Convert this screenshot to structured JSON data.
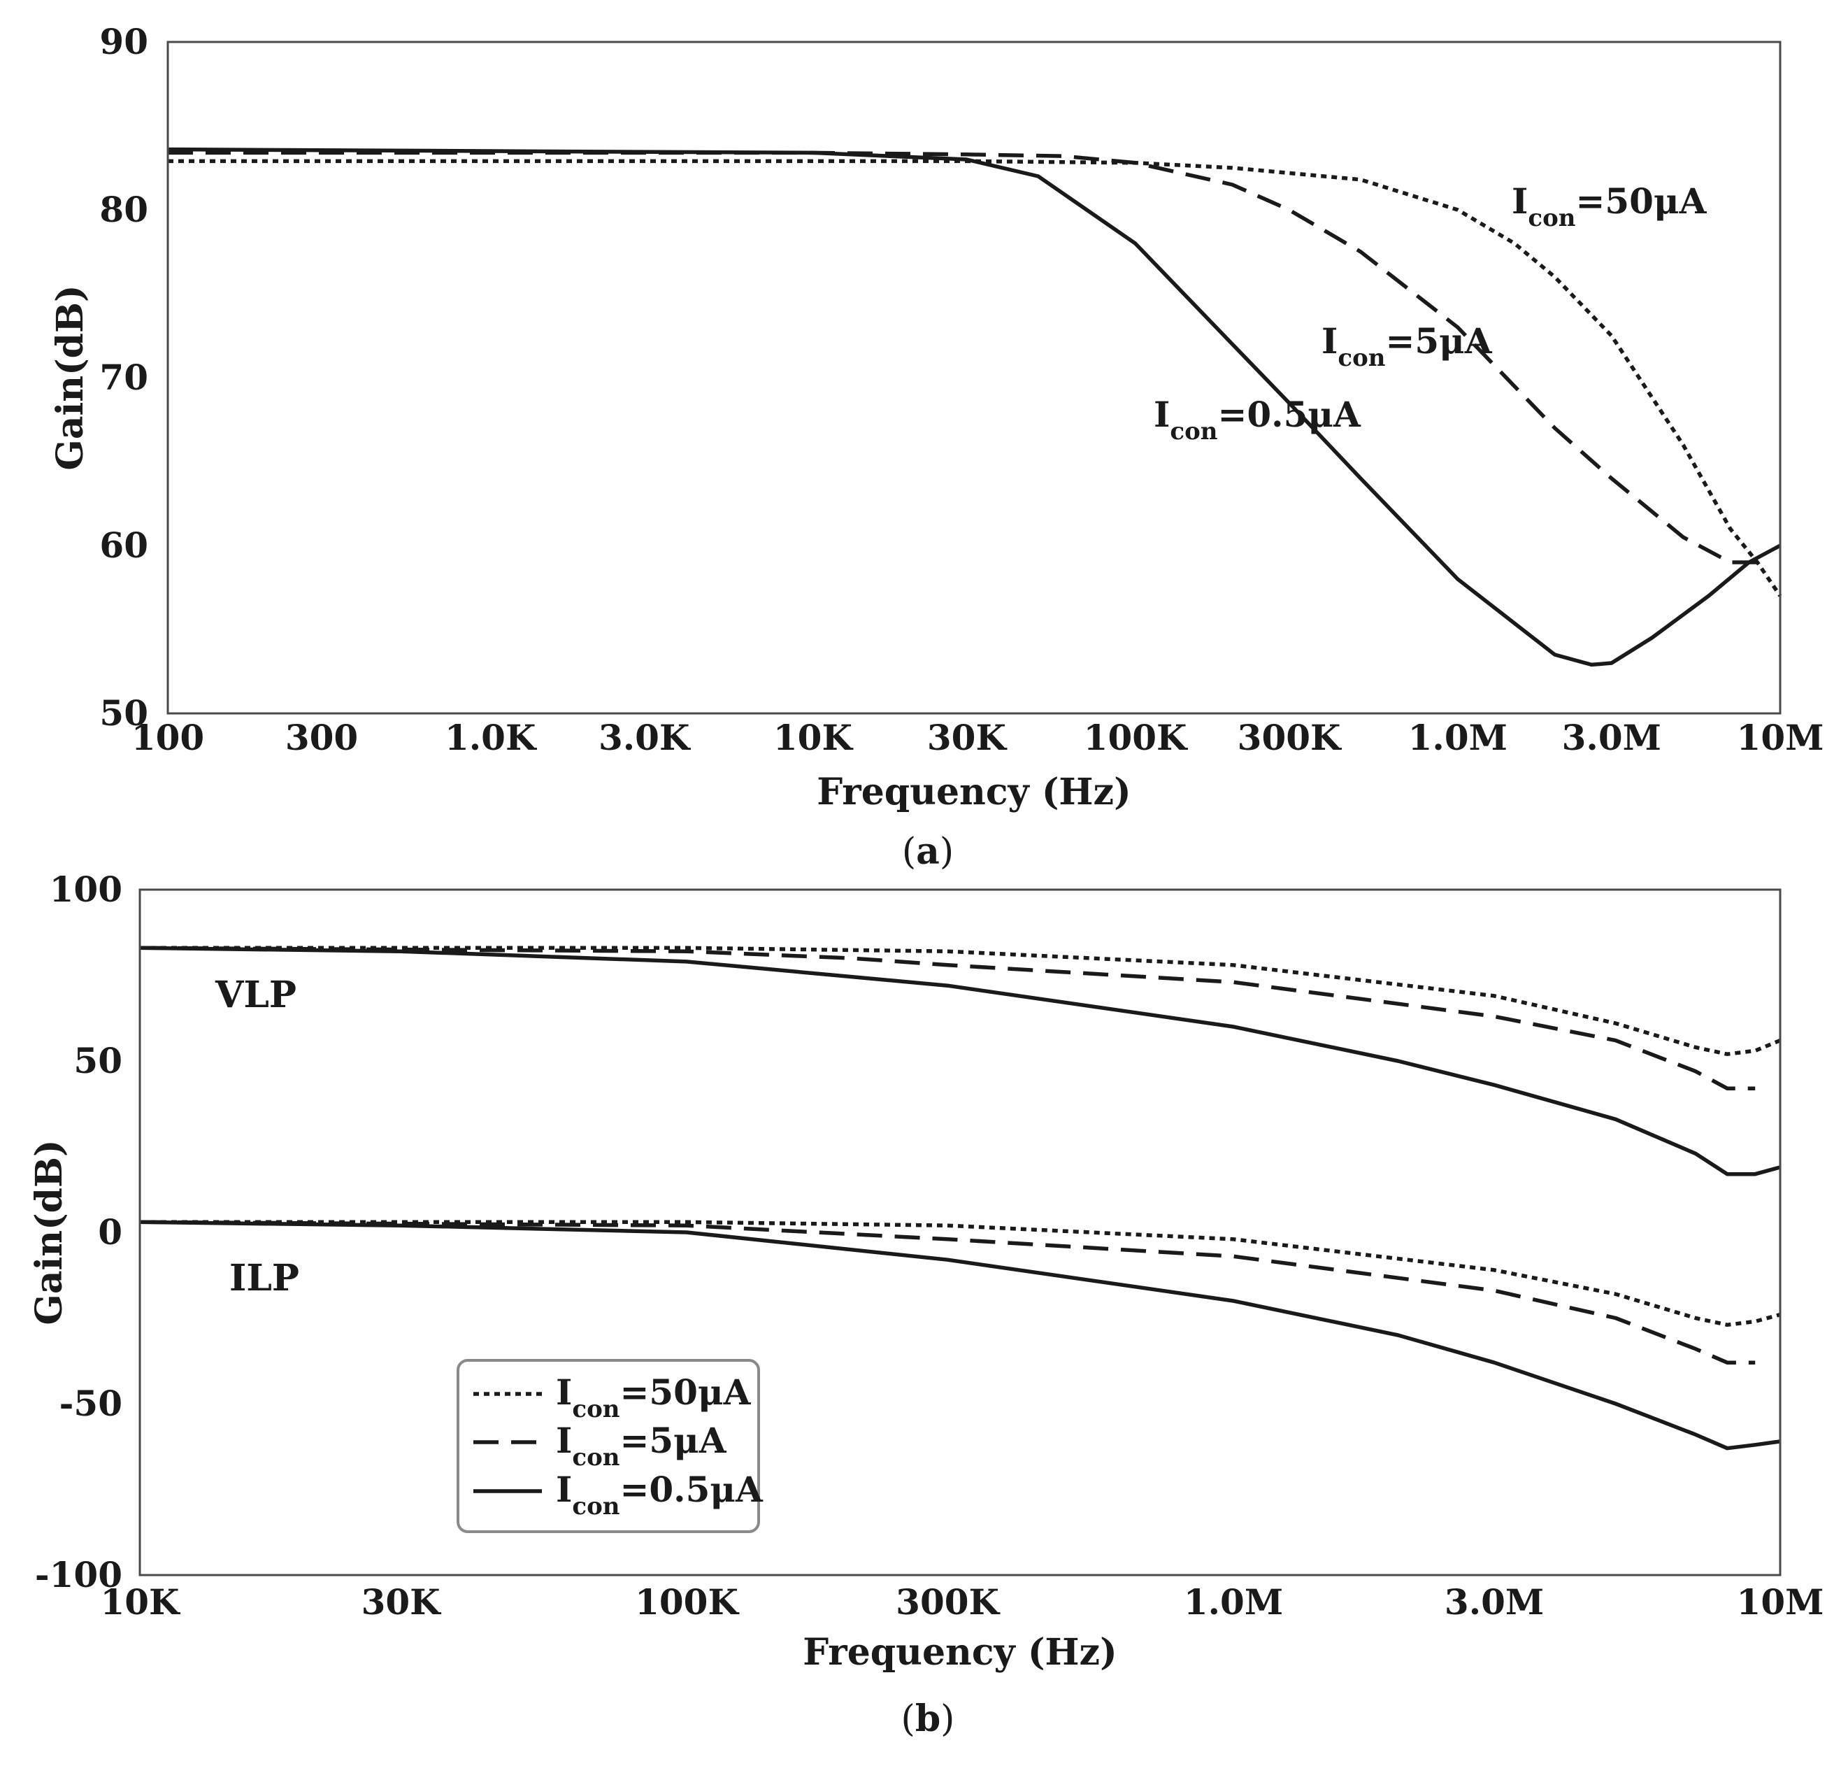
{
  "chart_data": [
    {
      "panel": "a",
      "type": "line",
      "xscale": "log",
      "xlabel": "Frequency (Hz)",
      "ylabel": "Gain(dB)",
      "xlim": [
        100,
        10000000
      ],
      "ylim": [
        50,
        90
      ],
      "xticks": [
        100,
        300,
        1000,
        3000,
        10000,
        30000,
        100000,
        300000,
        1000000,
        3000000,
        10000000
      ],
      "xtick_labels": [
        "100",
        "300",
        "1.0K",
        "3.0K",
        "10K",
        "30K",
        "100K",
        "300K",
        "1.0M",
        "3.0M",
        "10M"
      ],
      "yticks": [
        50,
        60,
        70,
        80,
        90
      ],
      "ytick_labels": [
        "50",
        "60",
        "70",
        "80",
        "90"
      ],
      "caption": "a",
      "series": [
        {
          "name": "Icon=50μA",
          "style": "dotted",
          "x": [
            100,
            1000,
            10000,
            30000,
            100000,
            200000,
            500000,
            1000000,
            1500000,
            2000000,
            3000000,
            5000000,
            7000000,
            8500000,
            10000000
          ],
          "y": [
            82.9,
            82.9,
            82.9,
            82.9,
            82.8,
            82.5,
            81.8,
            80.0,
            78.0,
            76.0,
            72.5,
            66.0,
            61.0,
            59.0,
            57.0
          ]
        },
        {
          "name": "Icon=5μA",
          "style": "dashed",
          "x": [
            100,
            1000,
            10000,
            30000,
            60000,
            100000,
            200000,
            300000,
            500000,
            1000000,
            2000000,
            3000000,
            5000000,
            7000000,
            8500000
          ],
          "y": [
            83.4,
            83.4,
            83.4,
            83.3,
            83.2,
            82.8,
            81.5,
            80.0,
            77.5,
            73.0,
            67.0,
            64.0,
            60.5,
            59.0,
            59.0
          ]
        },
        {
          "name": "Icon=0.5μA",
          "style": "solid",
          "x": [
            100,
            1000,
            10000,
            30000,
            50000,
            100000,
            200000,
            300000,
            500000,
            1000000,
            2000000,
            2600000,
            3000000,
            4000000,
            6000000,
            8000000,
            10000000
          ],
          "y": [
            83.6,
            83.5,
            83.4,
            83.0,
            82.0,
            78.0,
            72.0,
            68.5,
            64.0,
            58.0,
            53.5,
            52.9,
            53.0,
            54.5,
            57.0,
            59.0,
            60.0
          ]
        }
      ],
      "annotations": [
        {
          "base": "I",
          "sub": "con",
          "rest": "=50μA"
        },
        {
          "base": "I",
          "sub": "con",
          "rest": "=5μA"
        },
        {
          "base": "I",
          "sub": "con",
          "rest": "=0.5μA"
        }
      ]
    },
    {
      "panel": "b",
      "type": "line",
      "xscale": "log",
      "xlabel": "Frequency (Hz)",
      "ylabel": "Gain(dB)",
      "xlim": [
        10000,
        10000000
      ],
      "ylim": [
        -100,
        100
      ],
      "xticks": [
        10000,
        30000,
        100000,
        300000,
        1000000,
        3000000,
        10000000
      ],
      "xtick_labels": [
        "10K",
        "30K",
        "100K",
        "300K",
        "1.0M",
        "3.0M",
        "10M"
      ],
      "yticks": [
        -100,
        -50,
        0,
        50,
        100
      ],
      "ytick_labels": [
        "-100",
        "-50",
        "0",
        "50",
        "100"
      ],
      "caption": "b",
      "group_labels": [
        "VLP",
        "ILP"
      ],
      "legend": {
        "position": "lower-left",
        "entries": [
          {
            "base": "I",
            "sub": "con",
            "rest": "=50μA",
            "style": "dotted"
          },
          {
            "base": "I",
            "sub": "con",
            "rest": "=5μA",
            "style": "dashed"
          },
          {
            "base": "I",
            "sub": "con",
            "rest": "=0.5μA",
            "style": "solid"
          }
        ]
      },
      "series": [
        {
          "name": "VLP Icon=50μA",
          "style": "dotted",
          "x": [
            10000,
            100000,
            300000,
            1000000,
            3000000,
            5000000,
            7000000,
            8000000,
            9000000,
            10000000
          ],
          "y": [
            83,
            83,
            82,
            78,
            69,
            61,
            54,
            52,
            53,
            56
          ]
        },
        {
          "name": "VLP Icon=5μA",
          "style": "dashed",
          "x": [
            10000,
            100000,
            200000,
            300000,
            1000000,
            3000000,
            5000000,
            7000000,
            8000000,
            9000000
          ],
          "y": [
            83,
            82,
            80,
            78,
            73,
            63,
            56,
            47,
            42,
            42
          ]
        },
        {
          "name": "VLP Icon=0.5μA",
          "style": "solid",
          "x": [
            10000,
            30000,
            100000,
            300000,
            1000000,
            2000000,
            3000000,
            5000000,
            7000000,
            8000000,
            9000000,
            10000000
          ],
          "y": [
            83,
            82,
            79,
            72,
            60,
            50,
            43,
            33,
            23,
            17,
            17,
            19
          ]
        },
        {
          "name": "ILP Icon=50μA",
          "style": "dotted",
          "x": [
            10000,
            100000,
            300000,
            1000000,
            3000000,
            5000000,
            7000000,
            8000000,
            9000000,
            10000000
          ],
          "y": [
            3,
            3,
            2,
            -2,
            -11,
            -18,
            -25,
            -27,
            -26,
            -24
          ]
        },
        {
          "name": "ILP Icon=5μA",
          "style": "dashed",
          "x": [
            10000,
            100000,
            300000,
            1000000,
            3000000,
            5000000,
            7000000,
            8000000,
            9000000
          ],
          "y": [
            3,
            2,
            -2,
            -7,
            -17,
            -25,
            -34,
            -38,
            -38
          ]
        },
        {
          "name": "ILP Icon=0.5μA",
          "style": "solid",
          "x": [
            10000,
            30000,
            100000,
            300000,
            1000000,
            2000000,
            3000000,
            5000000,
            7000000,
            8000000,
            9000000,
            10000000
          ],
          "y": [
            3,
            2,
            0,
            -8,
            -20,
            -30,
            -38,
            -50,
            -59,
            -63,
            -62,
            -61
          ]
        }
      ]
    }
  ]
}
